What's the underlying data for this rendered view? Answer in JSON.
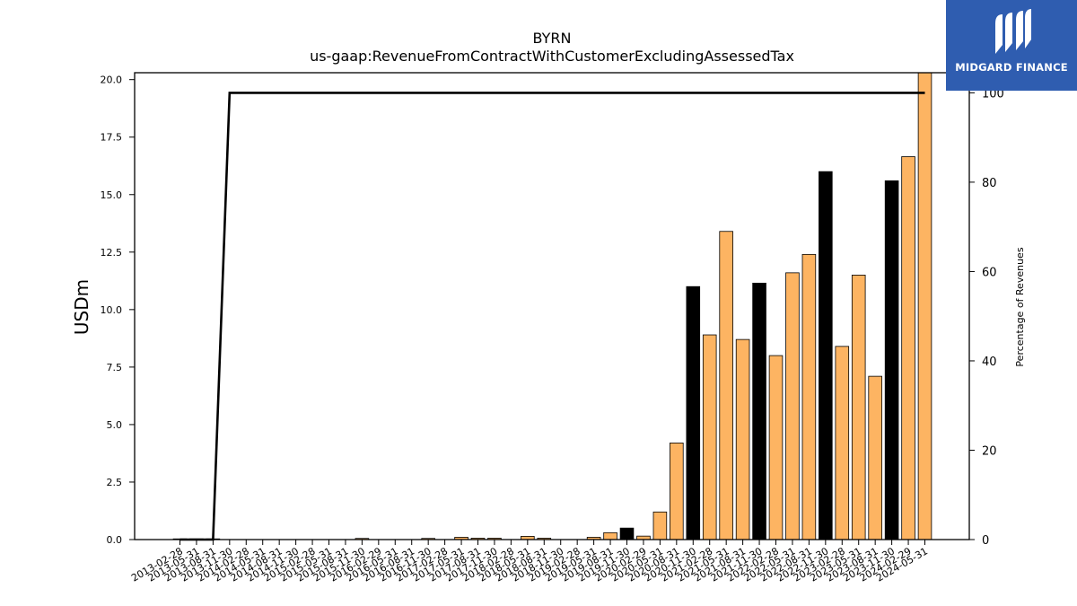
{
  "chart_data": {
    "type": "bar",
    "title": "BYRN",
    "subtitle": "us-gaap:RevenueFromContractWithCustomerExcludingAssessedTax",
    "ylabel": "USDm",
    "y2label": "Percentage of Revenues",
    "ylim": [
      0,
      20.3
    ],
    "y2lim": [
      0,
      104.5
    ],
    "yticks": [
      "0.0",
      "2.5",
      "5.0",
      "7.5",
      "10.0",
      "12.5",
      "15.0",
      "17.5",
      "20.0"
    ],
    "y2ticks": [
      "0",
      "20",
      "40",
      "60",
      "80",
      "100"
    ],
    "categories": [
      "2013-02-28",
      "2013-05-31",
      "2013-08-31",
      "2013-11-30",
      "2014-02-28",
      "2014-05-31",
      "2014-08-31",
      "2014-11-30",
      "2015-02-28",
      "2015-05-31",
      "2015-08-31",
      "2015-11-30",
      "2016-02-29",
      "2016-05-31",
      "2016-08-31",
      "2016-11-30",
      "2017-02-28",
      "2017-05-31",
      "2017-08-31",
      "2017-11-30",
      "2018-02-28",
      "2018-05-31",
      "2018-08-31",
      "2018-11-30",
      "2019-02-28",
      "2019-05-31",
      "2019-08-31",
      "2019-11-30",
      "2020-02-29",
      "2020-05-31",
      "2020-08-31",
      "2020-11-30",
      "2021-02-28",
      "2021-05-31",
      "2021-08-31",
      "2021-11-30",
      "2022-02-28",
      "2022-05-31",
      "2022-08-31",
      "2022-11-30",
      "2023-02-28",
      "2023-05-31",
      "2023-08-31",
      "2023-11-30",
      "2024-02-29",
      "2024-05-31"
    ],
    "series": [
      {
        "type": "bar",
        "values": [
          0.03,
          0.03,
          0.03,
          0,
          0,
          0,
          0,
          0,
          0,
          0,
          0,
          0.05,
          0,
          0,
          0,
          0.05,
          0,
          0.1,
          0.06,
          0.06,
          0,
          0.14,
          0.06,
          0,
          0,
          0.1,
          0.3,
          0.5,
          0.15,
          1.2,
          4.2,
          11.0,
          8.9,
          13.4,
          8.7,
          11.15,
          8.0,
          11.6,
          12.4,
          16.0,
          8.4,
          11.5,
          7.1,
          15.6,
          16.65,
          20.3
        ],
        "fy_end": [
          false,
          false,
          false,
          false,
          false,
          false,
          false,
          false,
          false,
          false,
          false,
          false,
          false,
          false,
          false,
          false,
          false,
          false,
          false,
          false,
          false,
          false,
          false,
          false,
          false,
          false,
          false,
          true,
          false,
          false,
          false,
          true,
          false,
          false,
          false,
          true,
          false,
          false,
          false,
          true,
          false,
          false,
          false,
          true,
          false,
          false
        ]
      },
      {
        "type": "line",
        "axis": "right",
        "values": [
          0,
          0,
          0,
          100,
          100,
          100,
          100,
          100,
          100,
          100,
          100,
          100,
          100,
          100,
          100,
          100,
          100,
          100,
          100,
          100,
          100,
          100,
          100,
          100,
          100,
          100,
          100,
          100,
          100,
          100,
          100,
          100,
          100,
          100,
          100,
          100,
          100,
          100,
          100,
          100,
          100,
          100,
          100,
          100,
          100,
          100
        ]
      }
    ],
    "colors": {
      "bar": "#fdb462",
      "bar_fy_end": "#000000",
      "line": "#000000"
    },
    "grid": false
  },
  "logo": {
    "text": "MIDGARD FINANCE",
    "background": "#2f5db0"
  }
}
